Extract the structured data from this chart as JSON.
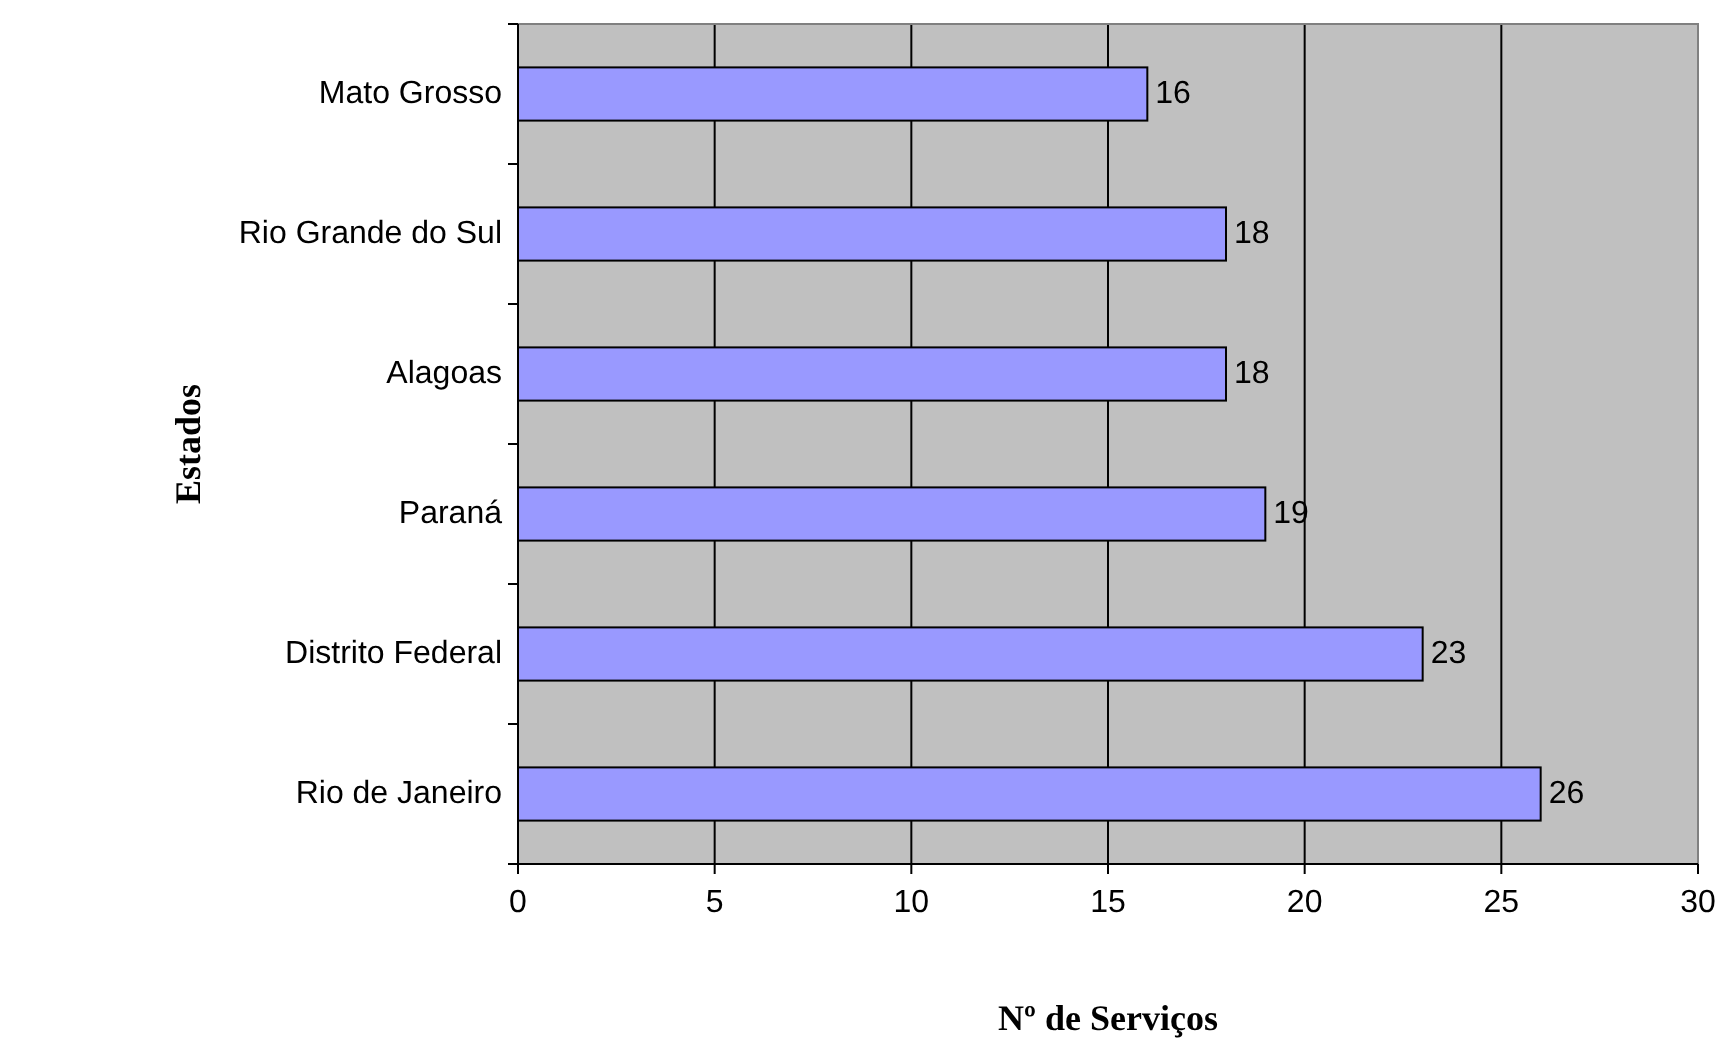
{
  "chart_data": {
    "type": "bar",
    "orientation": "horizontal",
    "xlabel": "Nº de Serviços",
    "ylabel": "Estados",
    "categories": [
      "Mato Grosso",
      "Rio Grande do Sul",
      "Alagoas",
      "Paraná",
      "Distrito Federal",
      "Rio de Janeiro"
    ],
    "values": [
      16,
      18,
      18,
      19,
      23,
      26
    ],
    "color": "#9999ff",
    "xlim": [
      0,
      30
    ],
    "xticks": [
      0,
      5,
      10,
      15,
      20,
      25,
      30
    ],
    "grid": "x",
    "data_labels": true
  }
}
